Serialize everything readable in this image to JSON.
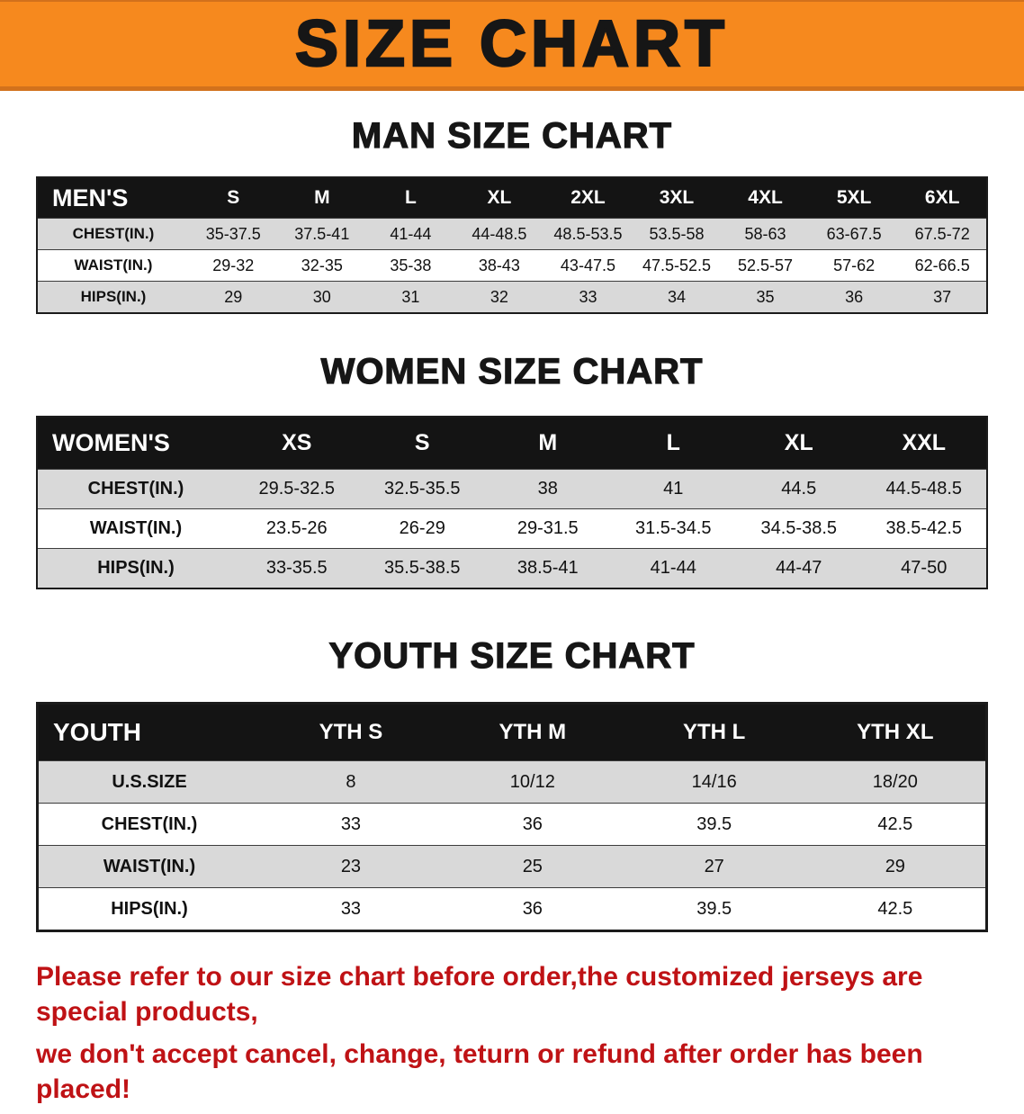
{
  "banner": {
    "title": "SIZE CHART"
  },
  "sections": {
    "men": {
      "heading": "MAN SIZE CHART"
    },
    "women": {
      "heading": "WOMEN SIZE CHART"
    },
    "youth": {
      "heading": "YOUTH SIZE CHART"
    }
  },
  "tables": {
    "men": {
      "label": "MEN'S",
      "columns": [
        "S",
        "M",
        "L",
        "XL",
        "2XL",
        "3XL",
        "4XL",
        "5XL",
        "6XL"
      ],
      "rows": [
        {
          "label": "CHEST(IN.)",
          "values": [
            "35-37.5",
            "37.5-41",
            "41-44",
            "44-48.5",
            "48.5-53.5",
            "53.5-58",
            "58-63",
            "63-67.5",
            "67.5-72"
          ]
        },
        {
          "label": "WAIST(IN.)",
          "values": [
            "29-32",
            "32-35",
            "35-38",
            "38-43",
            "43-47.5",
            "47.5-52.5",
            "52.5-57",
            "57-62",
            "62-66.5"
          ]
        },
        {
          "label": "HIPS(IN.)",
          "values": [
            "29",
            "30",
            "31",
            "32",
            "33",
            "34",
            "35",
            "36",
            "37"
          ]
        }
      ]
    },
    "women": {
      "label": "WOMEN'S",
      "columns": [
        "XS",
        "S",
        "M",
        "L",
        "XL",
        "XXL"
      ],
      "rows": [
        {
          "label": "CHEST(IN.)",
          "values": [
            "29.5-32.5",
            "32.5-35.5",
            "38",
            "41",
            "44.5",
            "44.5-48.5"
          ]
        },
        {
          "label": "WAIST(IN.)",
          "values": [
            "23.5-26",
            "26-29",
            "29-31.5",
            "31.5-34.5",
            "34.5-38.5",
            "38.5-42.5"
          ]
        },
        {
          "label": "HIPS(IN.)",
          "values": [
            "33-35.5",
            "35.5-38.5",
            "38.5-41",
            "41-44",
            "44-47",
            "47-50"
          ]
        }
      ]
    },
    "youth": {
      "label": "YOUTH",
      "columns": [
        "YTH S",
        "YTH M",
        "YTH L",
        "YTH XL"
      ],
      "rows": [
        {
          "label": "U.S.SIZE",
          "values": [
            "8",
            "10/12",
            "14/16",
            "18/20"
          ]
        },
        {
          "label": "CHEST(IN.)",
          "values": [
            "33",
            "36",
            "39.5",
            "42.5"
          ]
        },
        {
          "label": "WAIST(IN.)",
          "values": [
            "23",
            "25",
            "27",
            "29"
          ]
        },
        {
          "label": "HIPS(IN.)",
          "values": [
            "33",
            "36",
            "39.5",
            "42.5"
          ]
        }
      ]
    }
  },
  "footer": {
    "line1": "Please refer to our size chart before order,the customized jerseys are special products,",
    "line2": "we don't accept cancel, change, teturn or refund after order has been placed!"
  },
  "colors": {
    "banner_orange": "#F6891E",
    "banner_edge": "#D2711C",
    "table_header_black": "#141414",
    "row_stripe_gray": "#D9D9D9",
    "notice_red": "#BF1215",
    "text_black": "#161616"
  }
}
